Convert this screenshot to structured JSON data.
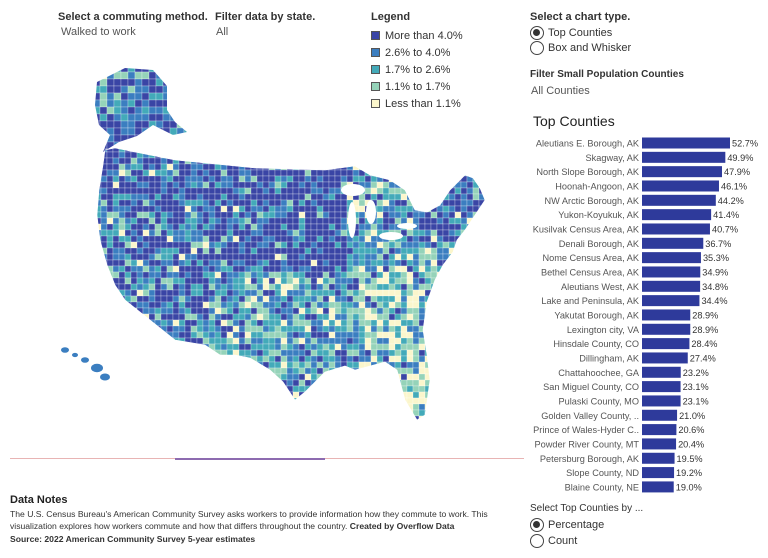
{
  "filters": {
    "commute_label": "Select a commuting method.",
    "commute_value": "Walked to work",
    "state_label": "Filter data by state.",
    "state_value": "All",
    "chart_type_label": "Select a chart type.",
    "chart_type_options": [
      "Top Counties",
      "Box and Whisker"
    ],
    "chart_type_selected": "Top Counties",
    "small_pop_label": "Filter Small Population Counties",
    "small_pop_value": "All Counties",
    "select_by_label": "Select Top Counties by ...",
    "select_by_options": [
      "Percentage",
      "Count"
    ],
    "select_by_selected": "Percentage"
  },
  "legend": {
    "title": "Legend",
    "items": [
      {
        "label": "More than 4.0%",
        "color": "#3a45a5"
      },
      {
        "label": "2.6% to 4.0%",
        "color": "#3b7ec0"
      },
      {
        "label": "1.7% to 2.6%",
        "color": "#43aab9"
      },
      {
        "label": "1.1% to 1.7%",
        "color": "#95d3b9"
      },
      {
        "label": "Less than 1.1%",
        "color": "#fbf6cc"
      }
    ]
  },
  "chart_data": {
    "type": "bar",
    "orientation": "horizontal",
    "title": "Top Counties",
    "bar_color": "#2e3a9b",
    "categories": [
      "Aleutians E. Borough, AK",
      "Skagway, AK",
      "North Slope Borough, AK",
      "Hoonah-Angoon, AK",
      "NW Arctic Borough, AK",
      "Yukon-Koyukuk, AK",
      "Kusilvak Census Area, AK",
      "Denali Borough, AK",
      "Nome Census Area, AK",
      "Bethel Census Area, AK",
      "Aleutians West, AK",
      "Lake and Peninsula, AK",
      "Yakutat Borough, AK",
      "Lexington city, VA",
      "Hinsdale County, CO",
      "Dillingham, AK",
      "Chattahoochee, GA",
      "San Miguel County, CO",
      "Pulaski County, MO",
      "Golden Valley County, ..",
      "Prince of Wales-Hyder C..",
      "Powder River County, MT",
      "Petersburg Borough, AK",
      "Slope County, ND",
      "Blaine County, NE"
    ],
    "values": [
      52.7,
      49.9,
      47.9,
      46.1,
      44.2,
      41.4,
      40.7,
      36.7,
      35.3,
      34.9,
      34.8,
      34.4,
      28.9,
      28.9,
      28.4,
      27.4,
      23.2,
      23.1,
      23.1,
      21.0,
      20.6,
      20.4,
      19.5,
      19.2,
      19.0
    ],
    "value_labels": [
      "52.7%",
      "49.9%",
      "47.9%",
      "46.1%",
      "44.2%",
      "41.4%",
      "40.7%",
      "36.7%",
      "35.3%",
      "34.9%",
      "34.8%",
      "34.4%",
      "28.9%",
      "28.9%",
      "28.4%",
      "27.4%",
      "23.2%",
      "23.1%",
      "23.1%",
      "21.0%",
      "20.6%",
      "20.4%",
      "19.5%",
      "19.2%",
      "19.0%"
    ],
    "xlim": [
      0,
      60
    ]
  },
  "notes": {
    "title": "Data Notes",
    "body": "The U.S. Census Bureau's American Community Survey asks workers to provide information how they commute to work. This visualization explores how workers commute and how that differs throughout the country.",
    "credit": "Created by Overflow Data",
    "source": "Source: 2022 American Community Survey 5-year estimates"
  }
}
